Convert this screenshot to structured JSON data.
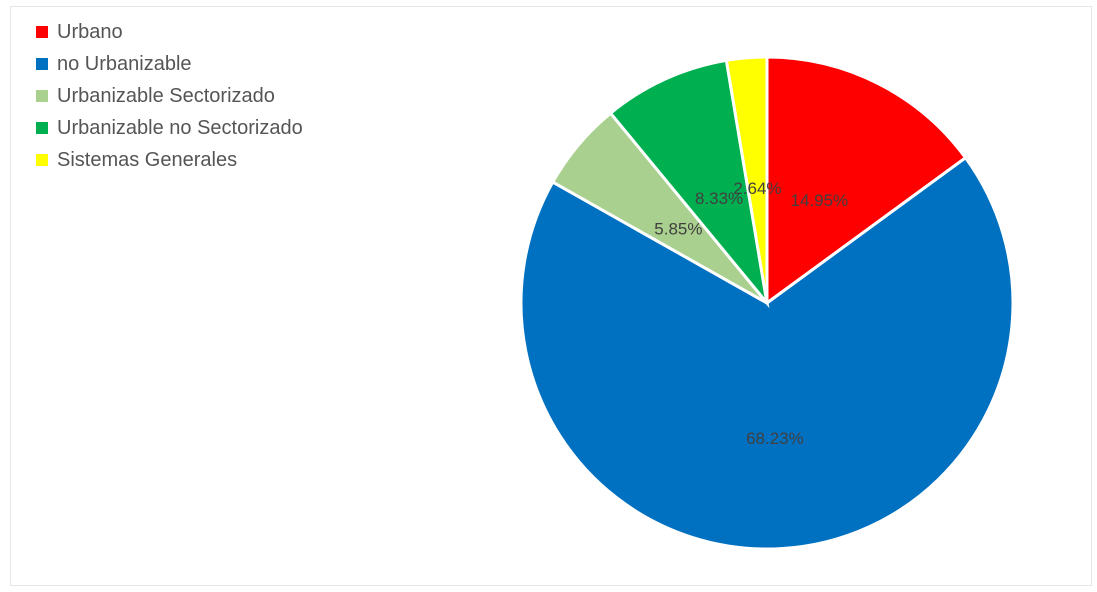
{
  "chart_data": {
    "type": "pie",
    "title": "",
    "categories": [
      "Urbano",
      "no Urbanizable",
      "Urbanizable Sectorizado",
      "Urbanizable no Sectorizado",
      "Sistemas Generales"
    ],
    "values": [
      14.95,
      68.23,
      5.85,
      8.33,
      2.64
    ],
    "data_labels": [
      "14.95%",
      "68.23%",
      "5.85%",
      "8.33%",
      "2.64%"
    ],
    "colors": [
      "#ff0000",
      "#0070c0",
      "#a9d08e",
      "#00b050",
      "#ffff00"
    ],
    "start_angle_deg": 0,
    "direction": "clockwise",
    "legend": {
      "position": "top-left"
    },
    "grid": false
  }
}
